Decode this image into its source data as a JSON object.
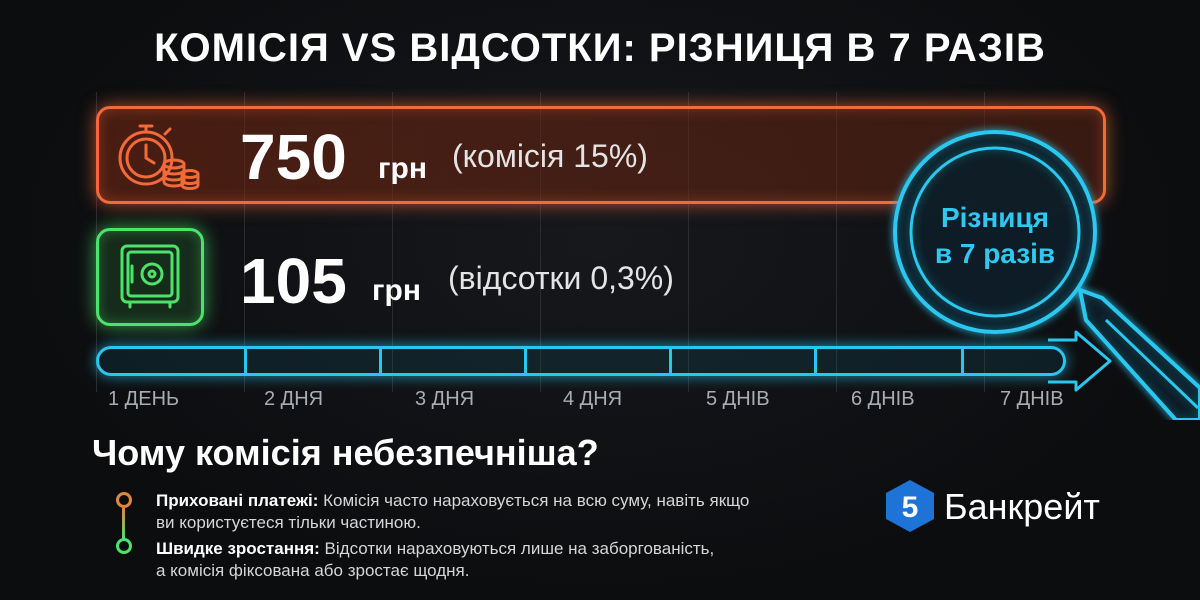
{
  "title": "КОМІСІЯ VS ВІДСОТКИ: РІЗНИЦЯ В 7 РАЗІВ",
  "commission": {
    "amount": "750",
    "unit": "грн",
    "note": "(комісія 15%)",
    "icon": "stopwatch-coins-icon",
    "color": "#f2693a"
  },
  "interest": {
    "amount": "105",
    "unit": "грн",
    "note": "(відсотки 0,3%)",
    "icon": "safe-icon",
    "color": "#4de36a"
  },
  "magnifier": {
    "line1": "Різниця",
    "line2": "в 7 разів",
    "color": "#29c7f0"
  },
  "days": [
    "1 ДЕНЬ",
    "2 ДНЯ",
    "3 ДНЯ",
    "4 ДНЯ",
    "5 ДНІВ",
    "6 ДНІВ",
    "7 ДНІВ"
  ],
  "why": {
    "heading": "Чому комісія небезпечніша?",
    "items": [
      {
        "title": "Приховані платежі:",
        "line1": "Комісія часто нараховується на всю суму, навіть якщо",
        "line2": "ви користуєтеся тільки частиною.",
        "color": "#e0873e"
      },
      {
        "title": "Швидке зростання:",
        "line1": "Відсотки нараховуються лише на заборгованість,",
        "line2": "а комісія фіксована або зростає щодня.",
        "color": "#4de36a"
      }
    ]
  },
  "brand": {
    "name": "Банкрейт",
    "logo_digit": "5",
    "color": "#1e74d6"
  }
}
